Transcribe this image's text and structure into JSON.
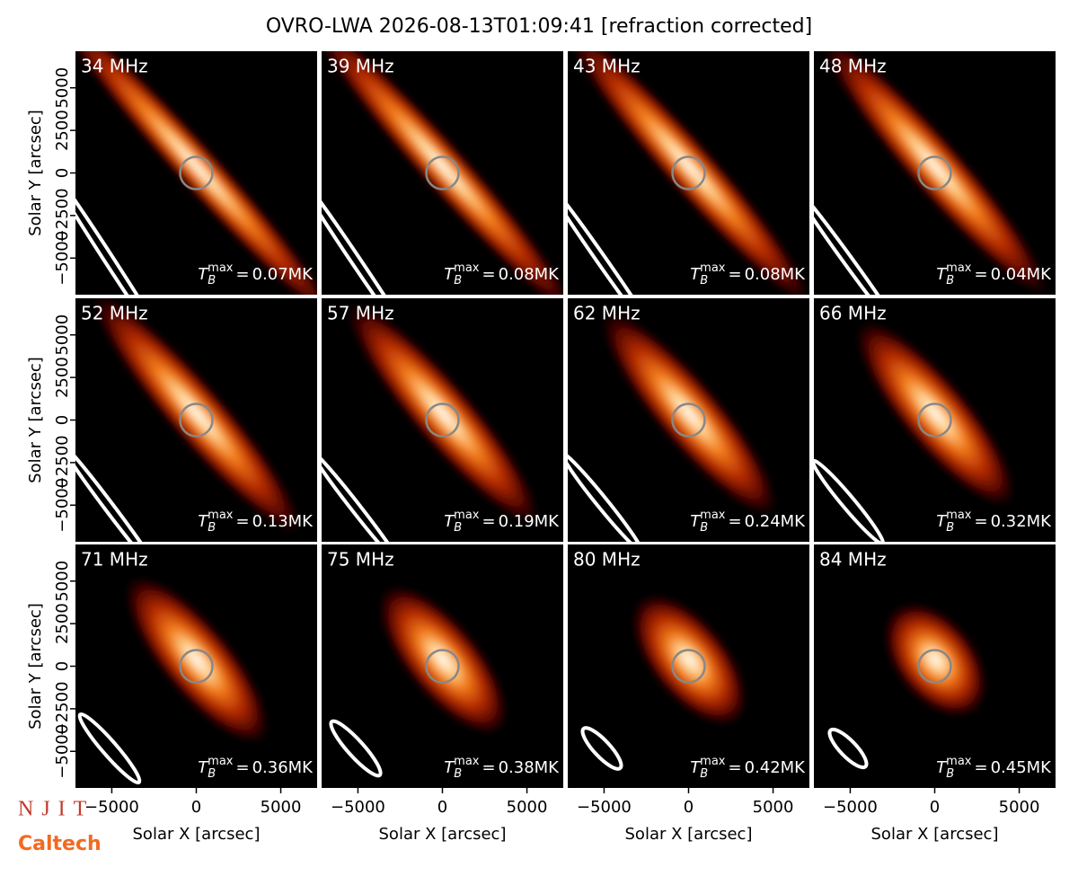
{
  "chart_data": {
    "type": "heatmap",
    "title": "OVRO-LWA 2026-08-13T01:09:41 [refraction corrected]",
    "xlabel": "Solar X [arcsec]",
    "ylabel": "Solar Y [arcsec]",
    "xlim": [
      -7150,
      7150
    ],
    "ylim": [
      -7150,
      7150
    ],
    "xticks": [
      {
        "value": -5000,
        "label": "−5000"
      },
      0,
      5000
    ],
    "yticks": [
      {
        "value": -5000,
        "label": "−5000"
      },
      {
        "value": -2500,
        "label": "−2500"
      },
      0,
      2500,
      5000
    ],
    "tb_symbol": {
      "base": "T",
      "sub": "B",
      "sup": "max",
      "equals": "="
    },
    "panels": [
      "34 MHz",
      "39 MHz",
      "43 MHz",
      "48 MHz",
      "52 MHz",
      "57 MHz",
      "62 MHz",
      "66 MHz",
      "71 MHz",
      "75 MHz",
      "80 MHz",
      "84 MHz"
    ],
    "tb_max_labels": [
      "0.07MK",
      "0.08MK",
      "0.08MK",
      "0.04MK",
      "0.13MK",
      "0.19MK",
      "0.24MK",
      "0.32MK",
      "0.36MK",
      "0.38MK",
      "0.42MK",
      "0.45MK"
    ]
  },
  "logos": [
    "NJIT",
    "Caltech"
  ]
}
